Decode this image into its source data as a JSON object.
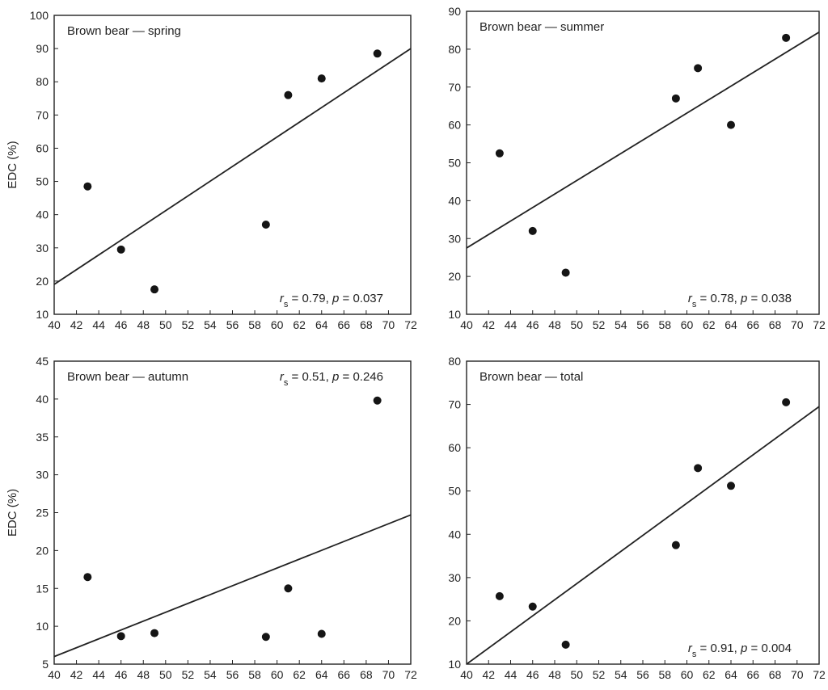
{
  "figure": {
    "ylabel": "EDC (%)",
    "stat_r": "r",
    "stat_r_sub": "s",
    "stat_mid": " = ",
    "stat_p": "p",
    "stat_eq": " = "
  },
  "chart_data": [
    {
      "type": "scatter",
      "title": "Brown bear — spring",
      "xlabel": "",
      "ylabel": "EDC (%)",
      "xlim": [
        40,
        72
      ],
      "ylim": [
        10,
        100
      ],
      "xticks": [
        40,
        42,
        44,
        46,
        48,
        50,
        52,
        54,
        56,
        58,
        60,
        62,
        64,
        66,
        68,
        70,
        72
      ],
      "yticks": [
        10,
        20,
        30,
        40,
        50,
        60,
        70,
        80,
        90,
        100
      ],
      "points": [
        {
          "x": 43,
          "y": 48.5
        },
        {
          "x": 46,
          "y": 29.5
        },
        {
          "x": 49,
          "y": 17.5
        },
        {
          "x": 59,
          "y": 37
        },
        {
          "x": 61,
          "y": 76
        },
        {
          "x": 64,
          "y": 81
        },
        {
          "x": 69,
          "y": 88.5
        }
      ],
      "trendline": {
        "x": [
          40,
          72
        ],
        "y": [
          19,
          90
        ]
      },
      "stat": {
        "rs": "0.79",
        "p": "0.037",
        "position": "bottom-right"
      }
    },
    {
      "type": "scatter",
      "title": "Brown bear — summer",
      "xlabel": "",
      "ylabel": "",
      "xlim": [
        40,
        72
      ],
      "ylim": [
        10,
        90
      ],
      "xticks": [
        40,
        42,
        44,
        46,
        48,
        50,
        52,
        54,
        56,
        58,
        60,
        62,
        64,
        66,
        68,
        70,
        72
      ],
      "yticks": [
        10,
        20,
        30,
        40,
        50,
        60,
        70,
        80,
        90
      ],
      "points": [
        {
          "x": 43,
          "y": 52.5
        },
        {
          "x": 46,
          "y": 32
        },
        {
          "x": 49,
          "y": 21
        },
        {
          "x": 59,
          "y": 67
        },
        {
          "x": 61,
          "y": 75
        },
        {
          "x": 64,
          "y": 60
        },
        {
          "x": 69,
          "y": 83
        }
      ],
      "trendline": {
        "x": [
          40,
          72
        ],
        "y": [
          27.5,
          84.5
        ]
      },
      "stat": {
        "rs": "0.78",
        "p": "0.038",
        "position": "bottom-right"
      }
    },
    {
      "type": "scatter",
      "title": "Brown bear — autumn",
      "xlabel": "",
      "ylabel": "EDC (%)",
      "xlim": [
        40,
        72
      ],
      "ylim": [
        5,
        45
      ],
      "xticks": [
        40,
        42,
        44,
        46,
        48,
        50,
        52,
        54,
        56,
        58,
        60,
        62,
        64,
        66,
        68,
        70,
        72
      ],
      "yticks": [
        5,
        10,
        15,
        20,
        25,
        30,
        35,
        40,
        45
      ],
      "points": [
        {
          "x": 43,
          "y": 16.5
        },
        {
          "x": 46,
          "y": 8.7
        },
        {
          "x": 49,
          "y": 9.1
        },
        {
          "x": 59,
          "y": 8.6
        },
        {
          "x": 61,
          "y": 15
        },
        {
          "x": 64,
          "y": 9
        },
        {
          "x": 69,
          "y": 39.8
        }
      ],
      "trendline": {
        "x": [
          40,
          72
        ],
        "y": [
          6,
          24.7
        ]
      },
      "stat": {
        "rs": "0.51",
        "p": "0.246",
        "position": "top-right"
      }
    },
    {
      "type": "scatter",
      "title": "Brown bear — total",
      "xlabel": "",
      "ylabel": "",
      "xlim": [
        40,
        72
      ],
      "ylim": [
        10,
        80
      ],
      "xticks": [
        40,
        42,
        44,
        46,
        48,
        50,
        52,
        54,
        56,
        58,
        60,
        62,
        64,
        66,
        68,
        70,
        72
      ],
      "yticks": [
        10,
        20,
        30,
        40,
        50,
        60,
        70,
        80
      ],
      "points": [
        {
          "x": 43,
          "y": 25.7
        },
        {
          "x": 46,
          "y": 23.3
        },
        {
          "x": 49,
          "y": 14.5
        },
        {
          "x": 59,
          "y": 37.5
        },
        {
          "x": 61,
          "y": 55.3
        },
        {
          "x": 64,
          "y": 51.2
        },
        {
          "x": 69,
          "y": 70.5
        }
      ],
      "trendline": {
        "x": [
          40,
          72
        ],
        "y": [
          10,
          69.5
        ]
      },
      "stat": {
        "rs": "0.91",
        "p": "0.004",
        "position": "bottom-right"
      }
    }
  ]
}
